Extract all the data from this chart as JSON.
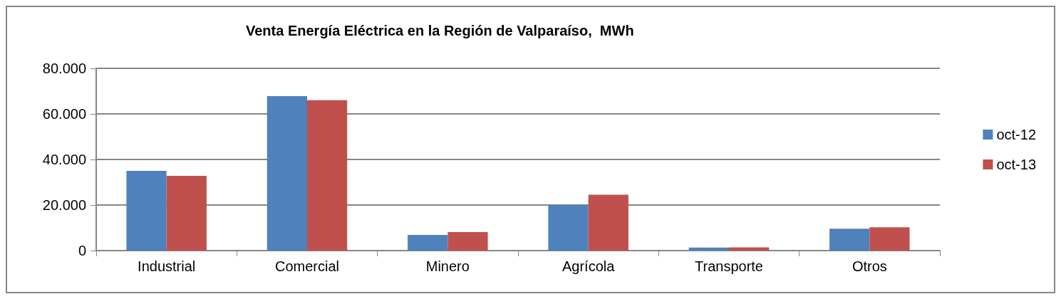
{
  "chart_data": {
    "type": "bar",
    "title": "Venta Energía Eléctrica en la Región de Valparaíso,  MWh",
    "categories": [
      "Industrial",
      "Comercial",
      "Minero",
      "Agrícola",
      "Transporte",
      "Otros"
    ],
    "series": [
      {
        "name": "oct-12",
        "color": "#4f81bd",
        "values": [
          35000,
          67800,
          6900,
          20000,
          1300,
          9600
        ]
      },
      {
        "name": "oct-13",
        "color": "#c0504d",
        "values": [
          32800,
          66000,
          8100,
          24500,
          1400,
          10200
        ]
      }
    ],
    "ylim": [
      0,
      80000
    ],
    "yticks": [
      {
        "value": 0,
        "label": "0"
      },
      {
        "value": 20000,
        "label": "20.000"
      },
      {
        "value": 40000,
        "label": "40.000"
      },
      {
        "value": 60000,
        "label": "60.000"
      },
      {
        "value": 80000,
        "label": "80.000"
      }
    ],
    "grid": "y",
    "legend": "right"
  }
}
